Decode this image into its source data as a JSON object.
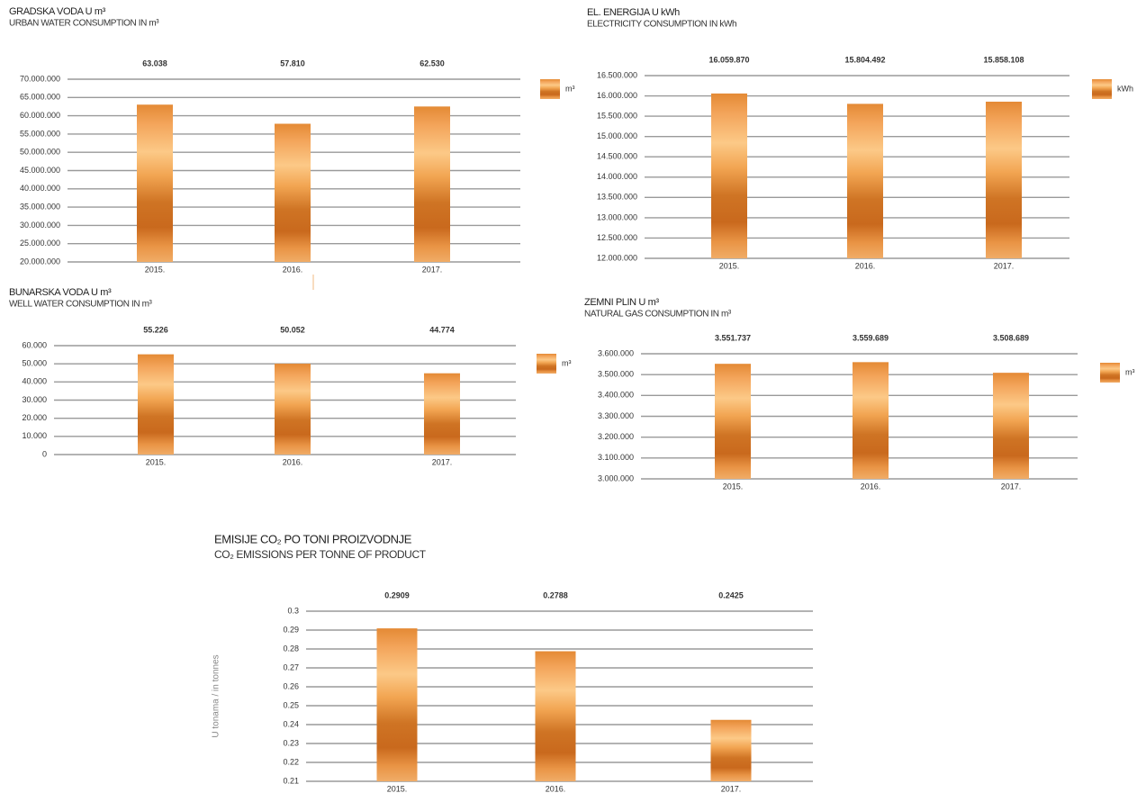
{
  "chart_data": [
    {
      "type": "bar",
      "title": "GRADSKA VODA U m³",
      "subtitle": "URBAN WATER CONSUMPTION IN m³",
      "categories": [
        "2015.",
        "2016.",
        "2017."
      ],
      "series": [
        {
          "name": "m³",
          "color": "#e8913a",
          "values": [
            63038000,
            57810000,
            62530000
          ],
          "value_labels": [
            "63.038",
            "57.810",
            "62.530"
          ]
        }
      ],
      "ylim": [
        20000000,
        70000000
      ],
      "yticks": [
        {
          "value": 20000000,
          "label": "20.000.000"
        },
        {
          "value": 25000000,
          "label": "25.000.000"
        },
        {
          "value": 30000000,
          "label": "30.000.000"
        },
        {
          "value": 35000000,
          "label": "35.000.000"
        },
        {
          "value": 40000000,
          "label": "40.000.000"
        },
        {
          "value": 45000000,
          "label": "45.000.000"
        },
        {
          "value": 50000000,
          "label": "50.000.000"
        },
        {
          "value": 55000000,
          "label": "55.000.000"
        },
        {
          "value": 60000000,
          "label": "60.000.000"
        },
        {
          "value": 65000000,
          "label": "65.000.000"
        },
        {
          "value": 70000000,
          "label": "70.000.000"
        }
      ],
      "grid": true,
      "legend": "right"
    },
    {
      "type": "bar",
      "title": "EL. ENERGIJA U kWh",
      "subtitle": "ELECTRICITY CONSUMPTION IN kWh",
      "categories": [
        "2015.",
        "2016.",
        "2017."
      ],
      "series": [
        {
          "name": "kWh",
          "color": "#e8913a",
          "values": [
            16059870,
            15804492,
            15858108
          ],
          "value_labels": [
            "16.059.870",
            "15.804.492",
            "15.858.108"
          ]
        }
      ],
      "ylim": [
        12000000,
        16500000
      ],
      "yticks": [
        {
          "value": 12000000,
          "label": "12.000.000"
        },
        {
          "value": 12500000,
          "label": "12.500.000"
        },
        {
          "value": 13000000,
          "label": "13.000.000"
        },
        {
          "value": 13500000,
          "label": "13.500.000"
        },
        {
          "value": 14000000,
          "label": "14.000.000"
        },
        {
          "value": 14500000,
          "label": "14.500.000"
        },
        {
          "value": 15000000,
          "label": "15.000.000"
        },
        {
          "value": 15500000,
          "label": "15.500.000"
        },
        {
          "value": 16000000,
          "label": "16.000.000"
        },
        {
          "value": 16500000,
          "label": "16.500.000"
        }
      ],
      "grid": true,
      "legend": "right"
    },
    {
      "type": "bar",
      "title": "BUNARSKA VODA U m³",
      "subtitle": "WELL WATER CONSUMPTION IN m³",
      "categories": [
        "2015.",
        "2016.",
        "2017."
      ],
      "series": [
        {
          "name": "m³",
          "color": "#e8913a",
          "values": [
            55226,
            50052,
            44774
          ],
          "value_labels": [
            "55.226",
            "50.052",
            "44.774"
          ]
        }
      ],
      "ylim": [
        0,
        60000
      ],
      "yticks": [
        0,
        {
          "value": 10000,
          "label": "10.000"
        },
        {
          "value": 20000,
          "label": "20.000"
        },
        {
          "value": 30000,
          "label": "30.000"
        },
        {
          "value": 40000,
          "label": "40.000"
        },
        {
          "value": 50000,
          "label": "50.000"
        },
        {
          "value": 60000,
          "label": "60.000"
        }
      ],
      "grid": true,
      "legend": "right"
    },
    {
      "type": "bar",
      "title": "ZEMNI PLIN U m³",
      "subtitle": "NATURAL GAS CONSUMPTION IN m³",
      "categories": [
        "2015.",
        "2016.",
        "2017."
      ],
      "series": [
        {
          "name": "m³",
          "color": "#e8913a",
          "values": [
            3551737,
            3559689,
            3508689
          ],
          "value_labels": [
            "3.551.737",
            "3.559.689",
            "3.508.689"
          ]
        }
      ],
      "ylim": [
        3000000,
        3600000
      ],
      "yticks": [
        {
          "value": 3000000,
          "label": "3.000.000"
        },
        {
          "value": 3100000,
          "label": "3.100.000"
        },
        {
          "value": 3200000,
          "label": "3.200.000"
        },
        {
          "value": 3300000,
          "label": "3.300.000"
        },
        {
          "value": 3400000,
          "label": "3.400.000"
        },
        {
          "value": 3500000,
          "label": "3.500.000"
        },
        {
          "value": 3600000,
          "label": "3.600.000"
        }
      ],
      "grid": true,
      "legend": "right"
    },
    {
      "type": "bar",
      "title": "EMISIJE CO₂ PO TONI PROIZVODNJE",
      "subtitle": "CO₂ EMISSIONS PER TONNE OF PRODUCT",
      "ylabel": "U tonama / in tonnes",
      "categories": [
        "2015.",
        "2016.",
        "2017."
      ],
      "series": [
        {
          "color": "#e8913a",
          "values": [
            0.2909,
            0.2788,
            0.2425
          ]
        }
      ],
      "ylim": [
        0.21,
        0.3
      ],
      "yticks": [
        0.21,
        0.22,
        0.23,
        0.24,
        0.25,
        0.26,
        0.27,
        0.28,
        0.29,
        0.3
      ],
      "grid": true
    }
  ]
}
